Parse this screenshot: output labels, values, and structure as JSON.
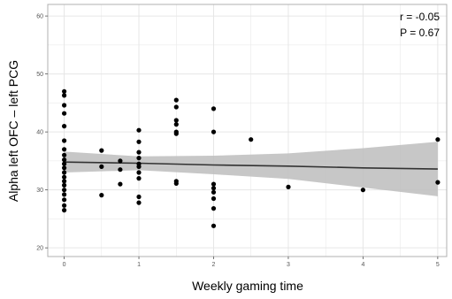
{
  "chart_data": {
    "type": "scatter",
    "title": "",
    "xlabel": "Weekly gaming time",
    "ylabel": "Alpha left OFC – left PCG",
    "xlim": [
      -0.22,
      5.12
    ],
    "ylim": [
      18.5,
      62
    ],
    "xticks": [
      0,
      1,
      2,
      3,
      4,
      5
    ],
    "yticks": [
      20,
      30,
      40,
      50,
      60
    ],
    "grid": true,
    "legend": "none",
    "annotations": [
      "r = -0.05",
      "P = 0.67"
    ],
    "points": [
      {
        "x": 0,
        "y": 47.0
      },
      {
        "x": 0,
        "y": 46.3
      },
      {
        "x": 0,
        "y": 44.6
      },
      {
        "x": 0,
        "y": 43.2
      },
      {
        "x": 0,
        "y": 41.0
      },
      {
        "x": 0,
        "y": 38.5
      },
      {
        "x": 0,
        "y": 37.0
      },
      {
        "x": 0,
        "y": 36.0
      },
      {
        "x": 0,
        "y": 35.2
      },
      {
        "x": 0,
        "y": 34.5
      },
      {
        "x": 0,
        "y": 33.8
      },
      {
        "x": 0,
        "y": 33.0
      },
      {
        "x": 0,
        "y": 32.2
      },
      {
        "x": 0,
        "y": 31.5
      },
      {
        "x": 0,
        "y": 30.8
      },
      {
        "x": 0,
        "y": 30.0
      },
      {
        "x": 0,
        "y": 29.2
      },
      {
        "x": 0,
        "y": 28.3
      },
      {
        "x": 0,
        "y": 27.3
      },
      {
        "x": 0,
        "y": 26.5
      },
      {
        "x": 0.5,
        "y": 36.8
      },
      {
        "x": 0.5,
        "y": 34.0
      },
      {
        "x": 0.5,
        "y": 29.1
      },
      {
        "x": 0.75,
        "y": 35.0
      },
      {
        "x": 0.75,
        "y": 33.5
      },
      {
        "x": 0.75,
        "y": 31.0
      },
      {
        "x": 1,
        "y": 40.3
      },
      {
        "x": 1,
        "y": 38.3
      },
      {
        "x": 1,
        "y": 36.5
      },
      {
        "x": 1,
        "y": 35.5
      },
      {
        "x": 1,
        "y": 34.5
      },
      {
        "x": 1,
        "y": 34.0
      },
      {
        "x": 1,
        "y": 33.0
      },
      {
        "x": 1,
        "y": 32.0
      },
      {
        "x": 1,
        "y": 28.8
      },
      {
        "x": 1,
        "y": 27.8
      },
      {
        "x": 1.5,
        "y": 45.5
      },
      {
        "x": 1.5,
        "y": 44.3
      },
      {
        "x": 1.5,
        "y": 42.0
      },
      {
        "x": 1.5,
        "y": 41.3
      },
      {
        "x": 1.5,
        "y": 40.0
      },
      {
        "x": 1.5,
        "y": 39.7
      },
      {
        "x": 1.5,
        "y": 31.5
      },
      {
        "x": 1.5,
        "y": 31.1
      },
      {
        "x": 2,
        "y": 44.0
      },
      {
        "x": 2,
        "y": 40.0
      },
      {
        "x": 2,
        "y": 31.0
      },
      {
        "x": 2,
        "y": 30.3
      },
      {
        "x": 2,
        "y": 29.6
      },
      {
        "x": 2,
        "y": 28.5
      },
      {
        "x": 2,
        "y": 26.8
      },
      {
        "x": 2,
        "y": 23.8
      },
      {
        "x": 2.5,
        "y": 38.7
      },
      {
        "x": 3,
        "y": 30.5
      },
      {
        "x": 4,
        "y": 30.0
      },
      {
        "x": 5,
        "y": 38.7
      },
      {
        "x": 5,
        "y": 31.3
      }
    ],
    "regression": {
      "x": [
        0,
        1,
        2,
        3,
        4,
        5
      ],
      "fit": [
        34.8,
        34.6,
        34.3,
        34.1,
        33.8,
        33.6
      ],
      "lower": [
        33.0,
        33.4,
        32.7,
        31.9,
        30.4,
        28.9
      ],
      "upper": [
        36.6,
        35.8,
        35.9,
        36.3,
        37.2,
        38.3
      ]
    },
    "colors": {
      "points": "#000000",
      "line": "#333333",
      "band": "#bdbdbd",
      "grid": "#e6e6e6",
      "panel_border": "#b0b0b0"
    }
  }
}
